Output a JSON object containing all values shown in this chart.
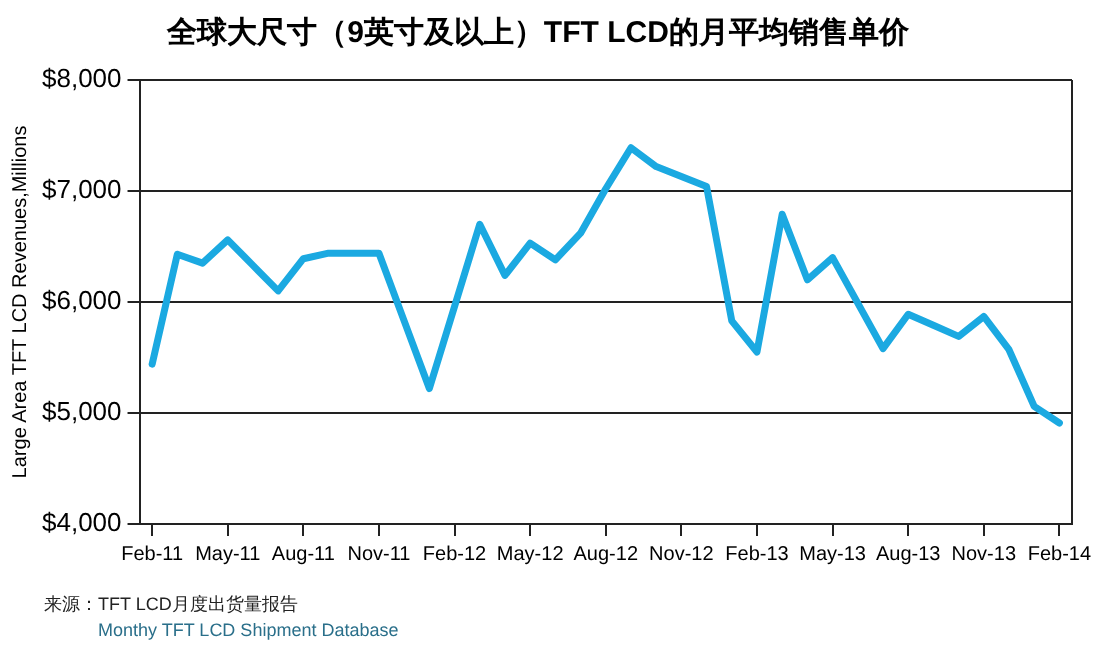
{
  "chart_data": {
    "type": "line",
    "title": "全球大尺寸（9英寸及以上）TFT LCD的月平均销售单价",
    "ylabel": "Large Area TFT LCD Revenues,Millions",
    "categories": [
      "Feb-11",
      null,
      null,
      "May-11",
      null,
      null,
      "Aug-11",
      null,
      null,
      "Nov-11",
      null,
      null,
      "Feb-12",
      null,
      null,
      "May-12",
      null,
      null,
      "Aug-12",
      null,
      null,
      "Nov-12",
      null,
      null,
      "Feb-13",
      null,
      null,
      "May-13",
      null,
      null,
      "Aug-13",
      null,
      null,
      "Nov-13",
      null,
      null,
      "Feb-14"
    ],
    "series": [
      {
        "color": "#1ba9e1",
        "values": [
          5440,
          6430,
          6350,
          6560,
          6330,
          6100,
          6390,
          6440,
          6440,
          6440,
          5830,
          5220,
          5960,
          6700,
          6240,
          6530,
          6380,
          6620,
          7020,
          7390,
          7220,
          7130,
          7040,
          5830,
          5550,
          6790,
          6200,
          6400,
          5990,
          5580,
          5890,
          5790,
          5690,
          5870,
          5570,
          5060,
          4910
        ]
      }
    ],
    "ylim": [
      4000,
      8000
    ],
    "yticks": [
      {
        "value": 4000,
        "label": "$4,000"
      },
      {
        "value": 5000,
        "label": "$5,000"
      },
      {
        "value": 6000,
        "label": "$6,000"
      },
      {
        "value": 7000,
        "label": "$7,000"
      },
      {
        "value": 8000,
        "label": "$8,000"
      }
    ],
    "grid": "y",
    "legend": false,
    "marker": "none",
    "line_style": "solid",
    "annotations": [
      "来源：TFT LCD月度出货量报告",
      "Monthy TFT LCD Shipment Database"
    ]
  }
}
